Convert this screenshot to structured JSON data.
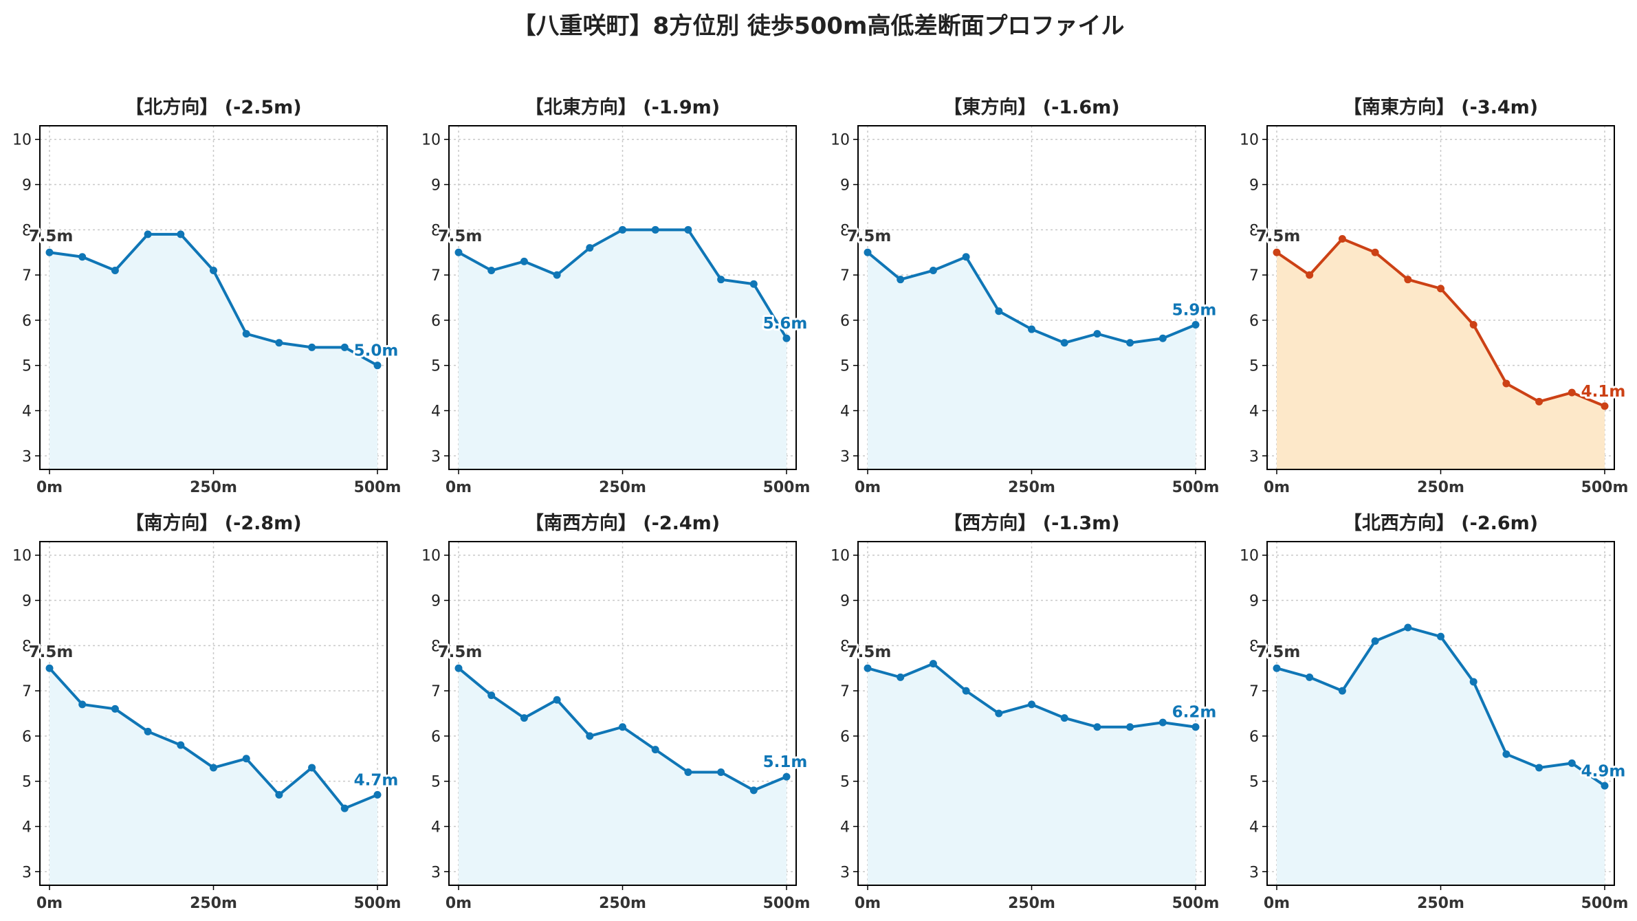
{
  "figure_title": "【八重咲町】8方位別 徒歩500m高低差断面プロファイル",
  "colors": {
    "normal_line": "#0f76b6",
    "normal_fill": "#e9f6fb",
    "highlight_line": "#cc4115",
    "highlight_fill": "#fde8c9",
    "start_label": "#333333",
    "grid": "#c8c8c8"
  },
  "chart_data": [
    {
      "type": "area",
      "title": "【北方向】 (-2.5m)",
      "x": [
        0,
        50,
        100,
        150,
        200,
        250,
        300,
        350,
        400,
        450,
        500
      ],
      "y": [
        7.5,
        7.4,
        7.1,
        7.9,
        7.9,
        7.1,
        5.7,
        5.5,
        5.4,
        5.4,
        5.0
      ],
      "xticks": [
        "0m",
        "250m",
        "500m"
      ],
      "ylim": [
        2.7,
        10.3
      ],
      "yticks": [
        "3",
        "4",
        "5",
        "6",
        "7",
        "8",
        "9",
        "10"
      ],
      "start_label": "7.5m",
      "end_label": "5.0m",
      "highlight": false,
      "grid": true
    },
    {
      "type": "area",
      "title": "【北東方向】 (-1.9m)",
      "x": [
        0,
        50,
        100,
        150,
        200,
        250,
        300,
        350,
        400,
        450,
        500
      ],
      "y": [
        7.5,
        7.1,
        7.3,
        7.0,
        7.6,
        8.0,
        8.0,
        8.0,
        6.9,
        6.8,
        5.6
      ],
      "xticks": [
        "0m",
        "250m",
        "500m"
      ],
      "ylim": [
        2.7,
        10.3
      ],
      "yticks": [
        "3",
        "4",
        "5",
        "6",
        "7",
        "8",
        "9",
        "10"
      ],
      "start_label": "7.5m",
      "end_label": "5.6m",
      "highlight": false,
      "grid": true
    },
    {
      "type": "area",
      "title": "【東方向】 (-1.6m)",
      "x": [
        0,
        50,
        100,
        150,
        200,
        250,
        300,
        350,
        400,
        450,
        500
      ],
      "y": [
        7.5,
        6.9,
        7.1,
        7.4,
        6.2,
        5.8,
        5.5,
        5.7,
        5.5,
        5.6,
        5.9
      ],
      "xticks": [
        "0m",
        "250m",
        "500m"
      ],
      "ylim": [
        2.7,
        10.3
      ],
      "yticks": [
        "3",
        "4",
        "5",
        "6",
        "7",
        "8",
        "9",
        "10"
      ],
      "start_label": "7.5m",
      "end_label": "5.9m",
      "highlight": false,
      "grid": true
    },
    {
      "type": "area",
      "title": "【南東方向】 (-3.4m)",
      "x": [
        0,
        50,
        100,
        150,
        200,
        250,
        300,
        350,
        400,
        450,
        500
      ],
      "y": [
        7.5,
        7.0,
        7.8,
        7.5,
        6.9,
        6.7,
        5.9,
        4.6,
        4.2,
        4.4,
        4.1
      ],
      "xticks": [
        "0m",
        "250m",
        "500m"
      ],
      "ylim": [
        2.7,
        10.3
      ],
      "yticks": [
        "3",
        "4",
        "5",
        "6",
        "7",
        "8",
        "9",
        "10"
      ],
      "start_label": "7.5m",
      "end_label": "4.1m",
      "highlight": true,
      "grid": true
    },
    {
      "type": "area",
      "title": "【南方向】 (-2.8m)",
      "x": [
        0,
        50,
        100,
        150,
        200,
        250,
        300,
        350,
        400,
        450,
        500
      ],
      "y": [
        7.5,
        6.7,
        6.6,
        6.1,
        5.8,
        5.3,
        5.5,
        4.7,
        5.3,
        4.4,
        4.7
      ],
      "xticks": [
        "0m",
        "250m",
        "500m"
      ],
      "ylim": [
        2.7,
        10.3
      ],
      "yticks": [
        "3",
        "4",
        "5",
        "6",
        "7",
        "8",
        "9",
        "10"
      ],
      "start_label": "7.5m",
      "end_label": "4.7m",
      "highlight": false,
      "grid": true
    },
    {
      "type": "area",
      "title": "【南西方向】 (-2.4m)",
      "x": [
        0,
        50,
        100,
        150,
        200,
        250,
        300,
        350,
        400,
        450,
        500
      ],
      "y": [
        7.5,
        6.9,
        6.4,
        6.8,
        6.0,
        6.2,
        5.7,
        5.2,
        5.2,
        4.8,
        5.1
      ],
      "xticks": [
        "0m",
        "250m",
        "500m"
      ],
      "ylim": [
        2.7,
        10.3
      ],
      "yticks": [
        "3",
        "4",
        "5",
        "6",
        "7",
        "8",
        "9",
        "10"
      ],
      "start_label": "7.5m",
      "end_label": "5.1m",
      "highlight": false,
      "grid": true
    },
    {
      "type": "area",
      "title": "【西方向】 (-1.3m)",
      "x": [
        0,
        50,
        100,
        150,
        200,
        250,
        300,
        350,
        400,
        450,
        500
      ],
      "y": [
        7.5,
        7.3,
        7.6,
        7.0,
        6.5,
        6.7,
        6.4,
        6.2,
        6.2,
        6.3,
        6.2
      ],
      "xticks": [
        "0m",
        "250m",
        "500m"
      ],
      "ylim": [
        2.7,
        10.3
      ],
      "yticks": [
        "3",
        "4",
        "5",
        "6",
        "7",
        "8",
        "9",
        "10"
      ],
      "start_label": "7.5m",
      "end_label": "6.2m",
      "highlight": false,
      "grid": true
    },
    {
      "type": "area",
      "title": "【北西方向】 (-2.6m)",
      "x": [
        0,
        50,
        100,
        150,
        200,
        250,
        300,
        350,
        400,
        450,
        500
      ],
      "y": [
        7.5,
        7.3,
        7.0,
        8.1,
        8.4,
        8.2,
        7.2,
        5.6,
        5.3,
        5.4,
        4.9
      ],
      "xticks": [
        "0m",
        "250m",
        "500m"
      ],
      "ylim": [
        2.7,
        10.3
      ],
      "yticks": [
        "3",
        "4",
        "5",
        "6",
        "7",
        "8",
        "9",
        "10"
      ],
      "start_label": "7.5m",
      "end_label": "4.9m",
      "highlight": false,
      "grid": true
    }
  ]
}
